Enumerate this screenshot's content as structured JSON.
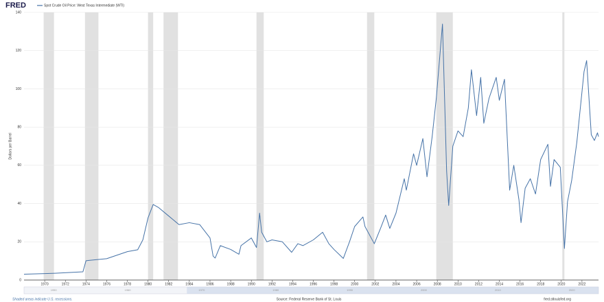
{
  "logo": "FRED",
  "chart_data": {
    "type": "line",
    "ylabel": "Dollars per Barrel",
    "series": [
      {
        "name": "Spot Crude Oil Price: West Texas Intermediate (WTI)",
        "color": "#4572a7",
        "x": [
          1968,
          1970,
          1971,
          1973.7,
          1974,
          1976,
          1978,
          1979,
          1979.5,
          1980,
          1980.5,
          1981,
          1982,
          1983,
          1984,
          1985,
          1986,
          1986.3,
          1986.5,
          1987,
          1988,
          1988.8,
          1989,
          1990,
          1990.5,
          1990.8,
          1991,
          1991.5,
          1992,
          1993,
          1993.9,
          1994.5,
          1995,
          1996,
          1996.9,
          1997.5,
          1998,
          1998.9,
          1999.5,
          2000,
          2000.8,
          2001,
          2001.9,
          2002.5,
          2003,
          2003.4,
          2004,
          2004.8,
          2005,
          2005.7,
          2006,
          2006.6,
          2007,
          2007.5,
          2007.9,
          2008.5,
          2008.9,
          2009.1,
          2009.5,
          2010,
          2010.5,
          2011,
          2011.3,
          2011.8,
          2012.2,
          2012.5,
          2013,
          2013.7,
          2014,
          2014.5,
          2014.9,
          2015,
          2015.4,
          2015.9,
          2016.1,
          2016.5,
          2017,
          2017.5,
          2018,
          2018.7,
          2018.95,
          2019.3,
          2019.9,
          2020.3,
          2020.6,
          2021,
          2021.5,
          2022.2,
          2022.45,
          2022.9,
          2023.2,
          2023.5,
          2023.6
        ],
        "values": [
          3.07,
          3.35,
          3.56,
          4.31,
          10.11,
          11.16,
          14.85,
          15.85,
          21,
          32.5,
          39.5,
          38,
          33.5,
          29,
          30,
          29,
          22,
          12.5,
          11.5,
          18,
          16,
          13.5,
          18,
          22,
          17,
          35,
          25,
          20,
          21,
          20,
          14.5,
          19,
          18,
          21,
          25,
          19,
          16,
          11.3,
          20,
          28,
          33,
          28,
          19,
          27,
          34,
          27,
          35,
          53,
          47,
          66,
          60,
          74,
          54,
          75,
          95,
          133.9,
          57,
          39,
          70,
          78,
          75,
          90,
          110,
          86,
          106,
          82,
          95,
          106,
          94,
          105,
          59,
          47,
          60,
          42,
          30,
          48,
          53,
          45,
          63,
          71,
          49,
          63,
          59,
          16.5,
          41,
          52,
          72,
          109,
          114.8,
          76,
          73,
          77,
          75
        ]
      }
    ],
    "recessions": [
      [
        1969.9,
        1970.9
      ],
      [
        1973.9,
        1975.2
      ],
      [
        1980.0,
        1980.5
      ],
      [
        1981.5,
        1982.9
      ],
      [
        1990.5,
        1991.2
      ],
      [
        2001.2,
        2001.9
      ],
      [
        2007.9,
        2009.5
      ],
      [
        2020.1,
        2020.3
      ]
    ],
    "xlim": [
      1968,
      2023.6
    ],
    "xticks": [
      1970,
      1972,
      1974,
      1976,
      1978,
      1980,
      1982,
      1984,
      1986,
      1988,
      1990,
      1992,
      1994,
      1996,
      1998,
      2000,
      2002,
      2004,
      2006,
      2008,
      2010,
      2012,
      2014,
      2016,
      2018,
      2020,
      2022
    ],
    "ylim": [
      0,
      140
    ],
    "yticks": [
      0,
      20,
      40,
      60,
      80,
      100,
      120,
      140
    ],
    "grid": true,
    "navigator_xlim": [
      1946,
      2023.6
    ],
    "navigator_ticks": [
      1950,
      1960,
      1970,
      1980,
      1990,
      2000,
      2010,
      2020
    ],
    "recession_note": "Shaded areas indicate U.S. recessions.",
    "source": "Source: Federal Reserve Bank of St. Louis",
    "site": "fred.stlouisfed.org"
  }
}
